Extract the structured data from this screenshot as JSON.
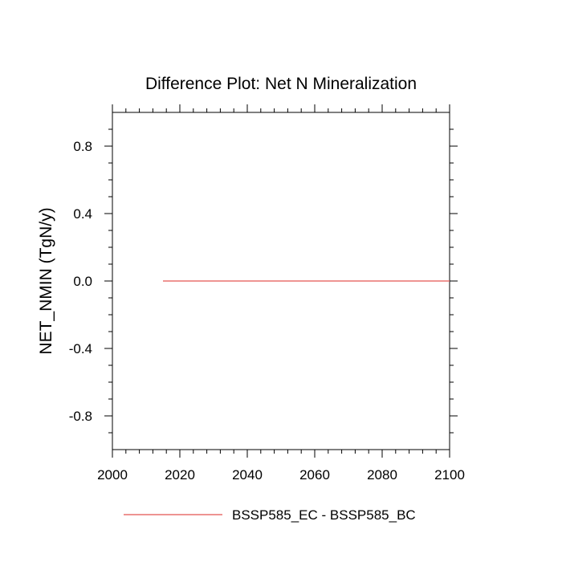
{
  "chart_data": {
    "type": "line",
    "title": "Difference Plot: Net N Mineralization",
    "xlabel": "",
    "ylabel": "NET_NMIN  (TgN/y)",
    "xlim": [
      2000,
      2100
    ],
    "ylim": [
      -1.0,
      1.0
    ],
    "x_ticks": [
      2000,
      2020,
      2040,
      2060,
      2080,
      2100
    ],
    "x_tick_labels": [
      "2000",
      "2020",
      "2040",
      "2060",
      "2080",
      "2100"
    ],
    "y_ticks": [
      -0.8,
      -0.4,
      0.0,
      0.4,
      0.8
    ],
    "y_tick_labels": [
      "-0.8",
      "-0.4",
      "0.0",
      "0.4",
      "0.8"
    ],
    "grid": false,
    "legend_position": "bottom-center",
    "series": [
      {
        "name": "BSSP585_EC - BSSP585_BC",
        "color": "#e8706e",
        "x": [
          2015,
          2100
        ],
        "y": [
          0.0,
          0.0
        ]
      }
    ]
  }
}
